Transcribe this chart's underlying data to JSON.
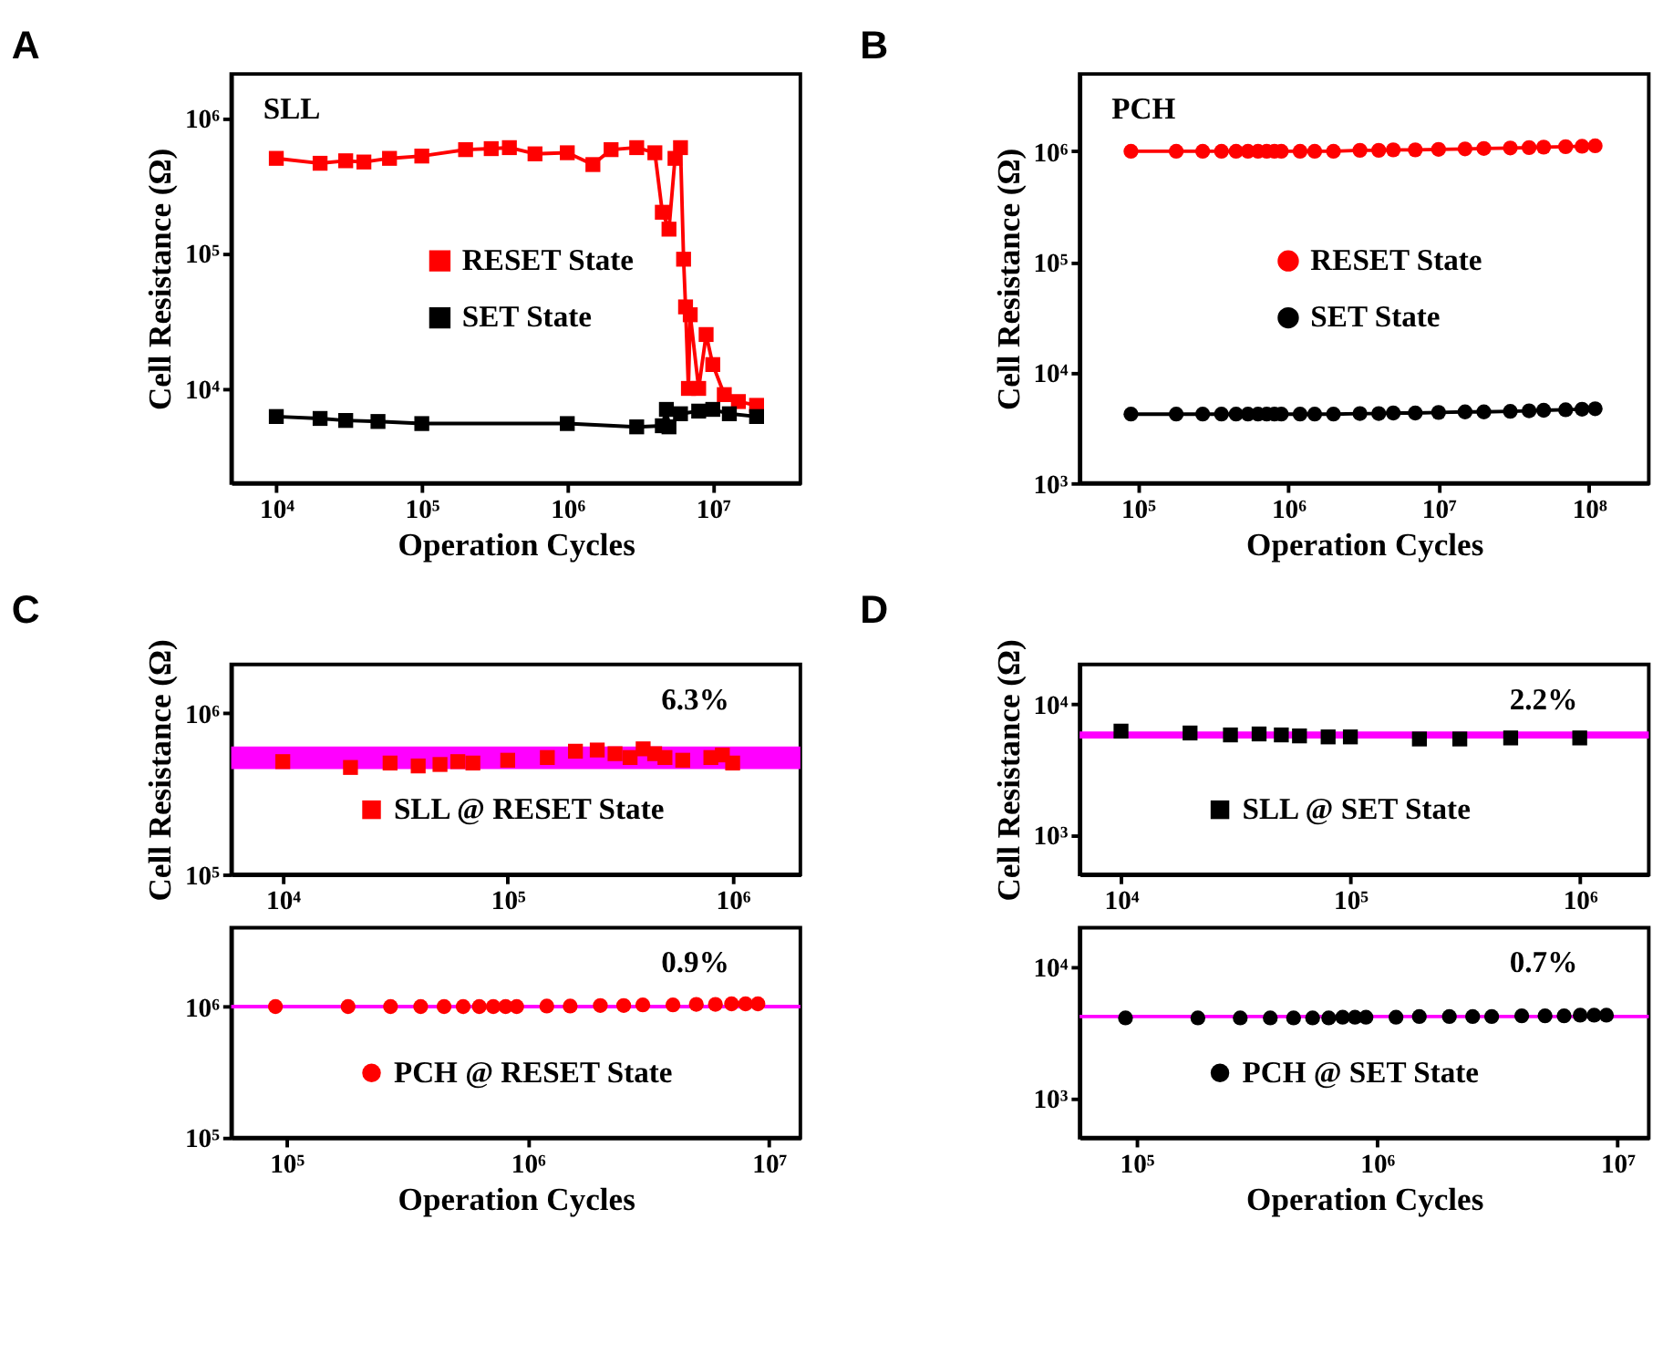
{
  "chart_data": [
    {
      "type": "line",
      "title": "A",
      "xlabel": "Operation Cycles",
      "ylabel": "Cell Resistance (Ω)",
      "log": "xy",
      "marker": "square",
      "legend": "center",
      "grid": false,
      "xlim": [
        4900,
        40000000
      ],
      "ylim": [
        2000,
        2100000
      ],
      "xticks": [
        {
          "value": 10000,
          "label": "10⁴"
        },
        {
          "value": 100000,
          "label": "10⁵"
        },
        {
          "value": 1000000,
          "label": "10⁶"
        },
        {
          "value": 10000000,
          "label": "10⁷"
        }
      ],
      "yticks": [
        {
          "value": 10000,
          "label": "10⁴"
        },
        {
          "value": 100000,
          "label": "10⁵"
        },
        {
          "value": 1000000,
          "label": "10⁶"
        }
      ],
      "annotations": [
        "SLL"
      ],
      "series": [
        {
          "name": "RESET State",
          "color": "#ff0000",
          "x": [
            10000,
            20000,
            30000,
            40000,
            60000,
            100000,
            200000,
            300000,
            400000,
            600000,
            1000000,
            1500000,
            2000000,
            3000000,
            4000000,
            4500000,
            5000000,
            5500000,
            6000000,
            6300000,
            6500000,
            6800000,
            7000000,
            8000000,
            9000000,
            10000000,
            12000000,
            15000000,
            20000000
          ],
          "values": [
            500000,
            460000,
            480000,
            470000,
            500000,
            520000,
            580000,
            590000,
            600000,
            540000,
            550000,
            450000,
            580000,
            600000,
            550000,
            200000,
            150000,
            500000,
            600000,
            90000,
            40000,
            10000,
            35000,
            10000,
            25000,
            15000,
            9000,
            8000,
            7500
          ]
        },
        {
          "name": "SET State",
          "color": "#000000",
          "x": [
            10000,
            20000,
            30000,
            50000,
            100000,
            1000000,
            3000000,
            4500000,
            4800000,
            5000000,
            6000000,
            8000000,
            10000000,
            13000000,
            20000000
          ],
          "values": [
            6200,
            6000,
            5800,
            5700,
            5500,
            5500,
            5200,
            5300,
            7000,
            5200,
            6500,
            6800,
            7000,
            6500,
            6200
          ]
        }
      ]
    },
    {
      "type": "line",
      "title": "B",
      "xlabel": "Operation Cycles",
      "ylabel": "Cell Resistance (Ω)",
      "log": "xy",
      "marker": "circle",
      "legend": "center",
      "grid": false,
      "xlim": [
        41000,
        250000000
      ],
      "ylim": [
        1000,
        5000000
      ],
      "xticks": [
        {
          "value": 100000,
          "label": "10⁵"
        },
        {
          "value": 1000000,
          "label": "10⁶"
        },
        {
          "value": 10000000,
          "label": "10⁷"
        },
        {
          "value": 100000000,
          "label": "10⁸"
        }
      ],
      "yticks": [
        {
          "value": 1000,
          "label": "10³"
        },
        {
          "value": 10000,
          "label": "10⁴"
        },
        {
          "value": 100000,
          "label": "10⁵"
        },
        {
          "value": 1000000,
          "label": "10⁶"
        }
      ],
      "annotations": [
        "PCH"
      ],
      "series": [
        {
          "name": "RESET State",
          "color": "#ff0000",
          "x": [
            90000,
            180000,
            270000,
            360000,
            450000,
            540000,
            630000,
            720000,
            810000,
            900000,
            1200000,
            1500000,
            2000000,
            3000000,
            4000000,
            5000000,
            7000000,
            10000000,
            15000000,
            20000000,
            30000000,
            40000000,
            50000000,
            70000000,
            90000000,
            110000000
          ],
          "values": [
            1000000,
            1000000,
            1000000,
            1000000,
            1000000,
            1000000,
            1000000,
            1000000,
            1000000,
            1000000,
            1000000,
            1000000,
            1000000,
            1020000,
            1020000,
            1030000,
            1030000,
            1040000,
            1050000,
            1060000,
            1070000,
            1080000,
            1090000,
            1100000,
            1110000,
            1120000
          ]
        },
        {
          "name": "SET State",
          "color": "#000000",
          "x": [
            90000,
            180000,
            270000,
            360000,
            450000,
            540000,
            630000,
            720000,
            810000,
            900000,
            1200000,
            1500000,
            2000000,
            3000000,
            4000000,
            5000000,
            7000000,
            10000000,
            15000000,
            20000000,
            30000000,
            40000000,
            50000000,
            70000000,
            90000000,
            110000000
          ],
          "values": [
            4200,
            4200,
            4200,
            4200,
            4200,
            4200,
            4200,
            4200,
            4200,
            4200,
            4200,
            4200,
            4200,
            4250,
            4250,
            4300,
            4300,
            4350,
            4400,
            4400,
            4450,
            4500,
            4550,
            4600,
            4650,
            4700
          ]
        }
      ]
    },
    {
      "type": "scatter",
      "title": "C",
      "ylabel": "Cell Resistance (Ω)",
      "log": "xy",
      "marker": "square",
      "legend": "bottom",
      "grid": false,
      "xlim": [
        5900,
        2000000
      ],
      "ylim": [
        100000,
        2000000
      ],
      "xticks": [
        {
          "value": 10000,
          "label": "10⁴"
        },
        {
          "value": 100000,
          "label": "10⁵"
        },
        {
          "value": 1000000,
          "label": "10⁶"
        }
      ],
      "yticks": [
        {
          "value": 100000,
          "label": "10⁵"
        },
        {
          "value": 1000000,
          "label": "10⁶"
        }
      ],
      "bands": [
        {
          "axis": "y",
          "from": 450000,
          "to": 620000,
          "color": "#ff00ff"
        }
      ],
      "annotations": [
        "6.3%"
      ],
      "series": [
        {
          "name": "SLL @ RESET State",
          "color": "#ff0000",
          "x": [
            10000,
            20000,
            30000,
            40000,
            50000,
            60000,
            70000,
            100000,
            150000,
            200000,
            250000,
            300000,
            350000,
            400000,
            450000,
            500000,
            600000,
            800000,
            900000,
            1000000
          ],
          "values": [
            500000,
            460000,
            490000,
            470000,
            480000,
            500000,
            490000,
            510000,
            530000,
            580000,
            590000,
            560000,
            530000,
            600000,
            560000,
            530000,
            510000,
            530000,
            550000,
            490000
          ]
        }
      ]
    },
    {
      "type": "scatter",
      "xlabel": "Operation Cycles",
      "log": "xy",
      "marker": "circle",
      "legend": "bottom",
      "grid": false,
      "xlim": [
        59000,
        13500000
      ],
      "ylim": [
        100000,
        4000000
      ],
      "xticks": [
        {
          "value": 100000,
          "label": "10⁵"
        },
        {
          "value": 1000000,
          "label": "10⁶"
        },
        {
          "value": 10000000,
          "label": "10⁷"
        }
      ],
      "yticks": [
        {
          "value": 100000,
          "label": "10⁵"
        },
        {
          "value": 1000000,
          "label": "10⁶"
        }
      ],
      "ref_lines": [
        {
          "axis": "y",
          "value": 1000000,
          "color": "#ff00ff"
        }
      ],
      "annotations": [
        "0.9%"
      ],
      "series": [
        {
          "name": "PCH @ RESET State",
          "color": "#ff0000",
          "x": [
            90000,
            180000,
            270000,
            360000,
            450000,
            540000,
            630000,
            720000,
            810000,
            900000,
            1200000,
            1500000,
            2000000,
            2500000,
            3000000,
            4000000,
            5000000,
            6000000,
            7000000,
            8000000,
            9000000
          ],
          "values": [
            1000000,
            1000000,
            1000000,
            1000000,
            1000000,
            1000000,
            1000000,
            1000000,
            1000000,
            1000000,
            1010000,
            1010000,
            1020000,
            1020000,
            1030000,
            1030000,
            1040000,
            1040000,
            1050000,
            1050000,
            1050000
          ]
        }
      ]
    },
    {
      "type": "scatter",
      "title": "D",
      "ylabel": "Cell Resistance (Ω)",
      "log": "xy",
      "marker": "square",
      "legend": "bottom",
      "grid": false,
      "xlim": [
        6600,
        2000000
      ],
      "ylim": [
        500,
        20000
      ],
      "xticks": [
        {
          "value": 10000,
          "label": "10⁴"
        },
        {
          "value": 100000,
          "label": "10⁵"
        },
        {
          "value": 1000000,
          "label": "10⁶"
        }
      ],
      "yticks": [
        {
          "value": 1000,
          "label": "10³"
        },
        {
          "value": 10000,
          "label": "10⁴"
        }
      ],
      "ref_lines": [
        {
          "axis": "y",
          "value": 5800,
          "color": "#ff00ff"
        }
      ],
      "annotations": [
        "2.2%"
      ],
      "series": [
        {
          "name": "SLL @ SET State",
          "color": "#000000",
          "x": [
            10000,
            20000,
            30000,
            40000,
            50000,
            60000,
            80000,
            100000,
            200000,
            300000,
            500000,
            1000000
          ],
          "values": [
            6200,
            6000,
            5800,
            5900,
            5800,
            5700,
            5600,
            5600,
            5400,
            5400,
            5500,
            5500
          ]
        }
      ]
    },
    {
      "type": "scatter",
      "xlabel": "Operation Cycles",
      "log": "xy",
      "marker": "circle",
      "legend": "bottom",
      "grid": false,
      "xlim": [
        58000,
        13500000
      ],
      "ylim": [
        500,
        20000
      ],
      "xticks": [
        {
          "value": 100000,
          "label": "10⁵"
        },
        {
          "value": 1000000,
          "label": "10⁶"
        },
        {
          "value": 10000000,
          "label": "10⁷"
        }
      ],
      "yticks": [
        {
          "value": 1000,
          "label": "10³"
        },
        {
          "value": 10000,
          "label": "10⁴"
        }
      ],
      "ref_lines": [
        {
          "axis": "y",
          "value": 4200,
          "color": "#ff00ff"
        }
      ],
      "annotations": [
        "0.7%"
      ],
      "series": [
        {
          "name": "PCH @ SET State",
          "color": "#000000",
          "x": [
            90000,
            180000,
            270000,
            360000,
            450000,
            540000,
            630000,
            720000,
            810000,
            900000,
            1200000,
            1500000,
            2000000,
            2500000,
            3000000,
            4000000,
            5000000,
            6000000,
            7000000,
            8000000,
            9000000
          ],
          "values": [
            4100,
            4100,
            4100,
            4100,
            4100,
            4100,
            4100,
            4150,
            4150,
            4150,
            4150,
            4200,
            4200,
            4200,
            4200,
            4250,
            4250,
            4250,
            4300,
            4300,
            4300
          ]
        }
      ]
    }
  ]
}
